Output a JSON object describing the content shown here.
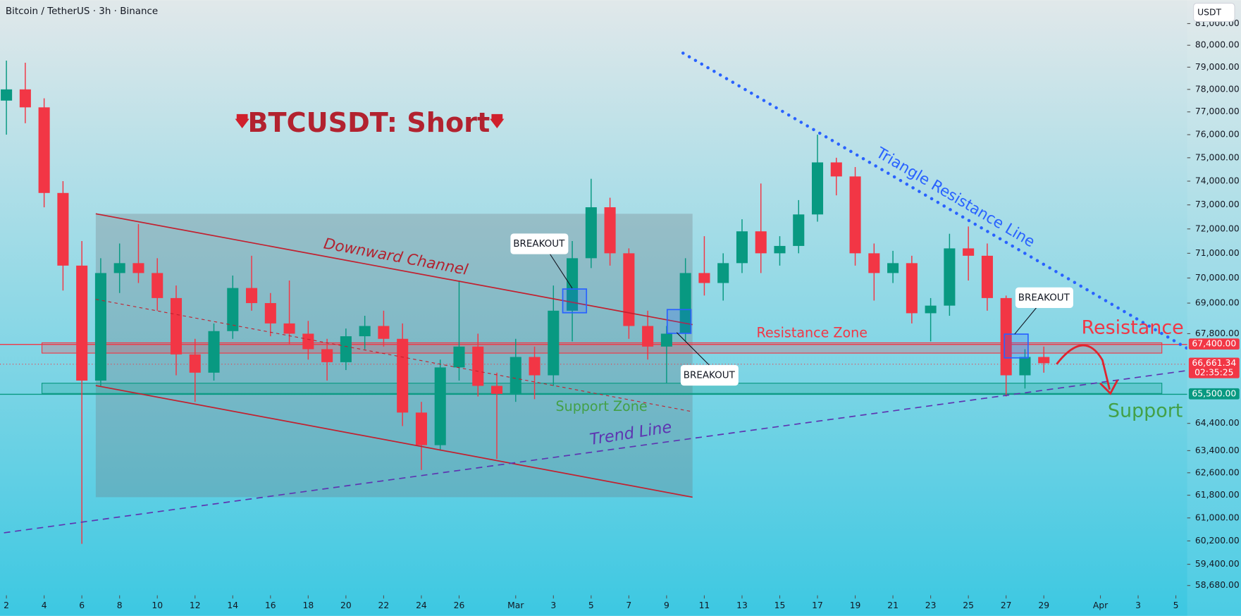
{
  "chart_data": {
    "type": "candlestick",
    "title": "Bitcoin / TetherUS · 3h · Binance",
    "currency_button": "USDT",
    "log_scale": true,
    "up_color": "#089981",
    "down_color": "#f23645",
    "x": [
      2,
      3,
      4,
      5,
      6,
      7,
      8,
      9,
      10,
      11,
      12,
      13,
      14,
      15,
      16,
      17,
      18,
      19,
      20,
      21,
      22,
      23,
      24,
      25,
      26,
      27,
      28,
      29,
      30,
      31,
      32,
      33,
      34,
      35,
      36,
      37,
      38,
      39,
      40,
      41,
      42,
      43,
      44,
      45,
      46,
      47,
      48,
      49,
      50,
      51,
      52,
      53,
      54,
      55,
      56,
      57
    ],
    "open": [
      77500,
      78000,
      77200,
      73500,
      70500,
      66000,
      70200,
      70600,
      70200,
      69200,
      67000,
      66300,
      67900,
      69600,
      69000,
      68200,
      67800,
      67200,
      66700,
      67700,
      68100,
      67600,
      64800,
      63600,
      66500,
      67300,
      65800,
      65500,
      66900,
      66200,
      68700,
      70800,
      72900,
      71000,
      68100,
      67300,
      67800,
      70200,
      69800,
      70600,
      71900,
      71000,
      71300,
      72600,
      74800,
      74200,
      71000,
      70200,
      70600,
      68600,
      68900,
      71200,
      70900,
      69200,
      66200,
      66900
    ],
    "high": [
      79300,
      79200,
      77600,
      74000,
      71500,
      70800,
      71400,
      72200,
      70800,
      69700,
      67600,
      68200,
      70100,
      70900,
      69400,
      69900,
      68300,
      67600,
      68000,
      68500,
      68700,
      68200,
      65200,
      66800,
      69900,
      67800,
      66300,
      67600,
      67300,
      69700,
      71500,
      74100,
      73300,
      71200,
      68700,
      68100,
      70800,
      71700,
      71000,
      72400,
      73900,
      71700,
      73200,
      76000,
      75000,
      74600,
      71400,
      71100,
      70900,
      69200,
      71800,
      72100,
      71400,
      69300,
      67200,
      67300
    ],
    "low": [
      76000,
      76500,
      72900,
      69500,
      60100,
      65800,
      69400,
      69800,
      68700,
      66200,
      65200,
      66000,
      67600,
      68700,
      67700,
      67400,
      66800,
      66000,
      66400,
      67200,
      67300,
      64300,
      62700,
      63400,
      66000,
      65400,
      63100,
      65200,
      65300,
      65800,
      67500,
      70400,
      70500,
      67600,
      66800,
      65900,
      67500,
      69300,
      69100,
      70200,
      70200,
      70500,
      71000,
      72300,
      73400,
      70500,
      69100,
      69800,
      68200,
      67500,
      68500,
      69900,
      68700,
      65400,
      65700,
      66300
    ],
    "close": [
      78000,
      77200,
      73500,
      70500,
      66000,
      70200,
      70600,
      70200,
      69200,
      67000,
      66300,
      67900,
      69600,
      69000,
      68200,
      67800,
      67200,
      66700,
      67700,
      68100,
      67600,
      64800,
      63600,
      66500,
      67300,
      65800,
      65500,
      66900,
      66200,
      68700,
      70800,
      72900,
      71000,
      68100,
      67300,
      67800,
      70200,
      69800,
      70600,
      71900,
      71000,
      71300,
      72600,
      74800,
      74200,
      71000,
      70200,
      70600,
      68600,
      68900,
      71200,
      70900,
      69200,
      66200,
      66900,
      66661.34
    ],
    "xlim": [
      1.66,
      64.6
    ],
    "xticks": [
      2,
      4,
      6,
      8,
      10,
      12,
      14,
      16,
      18,
      20,
      22,
      24,
      26,
      {
        "value": 29,
        "label": "Mar"
      },
      {
        "value": 31,
        "label": "3"
      },
      {
        "value": 33,
        "label": "5"
      },
      {
        "value": 35,
        "label": "7"
      },
      {
        "value": 37,
        "label": "9"
      },
      {
        "value": 39,
        "label": "11"
      },
      {
        "value": 41,
        "label": "13"
      },
      {
        "value": 43,
        "label": "15"
      },
      {
        "value": 45,
        "label": "17"
      },
      {
        "value": 47,
        "label": "19"
      },
      {
        "value": 49,
        "label": "21"
      },
      {
        "value": 51,
        "label": "23"
      },
      {
        "value": 53,
        "label": "25"
      },
      {
        "value": 55,
        "label": "27"
      },
      {
        "value": 57,
        "label": "29"
      },
      {
        "value": 60,
        "label": "Apr"
      },
      {
        "value": 62,
        "label": "3"
      },
      {
        "value": 64,
        "label": "5"
      }
    ],
    "ylim": [
      58350,
      82100
    ],
    "yticks": [
      {
        "value": 81000,
        "label": "81,000.00"
      },
      {
        "value": 80000,
        "label": "80,000.00"
      },
      {
        "value": 79000,
        "label": "79,000.00"
      },
      {
        "value": 78000,
        "label": "78,000.00"
      },
      {
        "value": 77000,
        "label": "77,000.00"
      },
      {
        "value": 76000,
        "label": "76,000.00"
      },
      {
        "value": 75000,
        "label": "75,000.00"
      },
      {
        "value": 74000,
        "label": "74,000.00"
      },
      {
        "value": 73000,
        "label": "73,000.00"
      },
      {
        "value": 72000,
        "label": "72,000.00"
      },
      {
        "value": 71000,
        "label": "71,000.00"
      },
      {
        "value": 70000,
        "label": "70,000.00"
      },
      {
        "value": 69000,
        "label": "69,000.00"
      },
      {
        "value": 67800,
        "label": "67,800.00"
      },
      {
        "value": 64400,
        "label": "64,400.00"
      },
      {
        "value": 63400,
        "label": "63,400.00"
      },
      {
        "value": 62600,
        "label": "62,600.00"
      },
      {
        "value": 61800,
        "label": "61,800.00"
      },
      {
        "value": 61000,
        "label": "61,000.00"
      },
      {
        "value": 60200,
        "label": "60,200.00"
      },
      {
        "value": 59400,
        "label": "59,400.00"
      },
      {
        "value": 58680,
        "label": "58,680.00"
      }
    ],
    "price_labels": [
      {
        "value": 67400,
        "label": "67,400.00",
        "color": "#f23645"
      },
      {
        "value": 66661.34,
        "label": "66,661.34",
        "countdown": "02:35:25",
        "color": "#f23645"
      },
      {
        "value": 65500,
        "label": "65,500.00",
        "color": "#089981"
      }
    ],
    "annotations": {
      "headline": "BTCUSDT: Short",
      "channel": "Downward Channel",
      "triangle": "Triangle Resistance Line",
      "resistance_zone": "Resistance Zone",
      "support_zone": "Support Zone",
      "trend_line": "Trend Line",
      "resistance": "Resistance",
      "support": "Support",
      "breakouts": [
        "BREAKOUT",
        "BREAKOUT",
        "BREAKOUT"
      ]
    }
  }
}
